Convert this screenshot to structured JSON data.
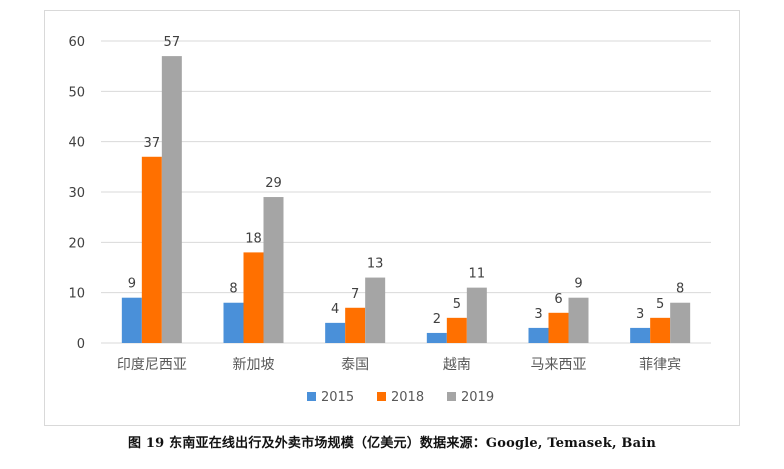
{
  "chart_data": {
    "type": "bar",
    "categories": [
      "印度尼西亚",
      "新加坡",
      "泰国",
      "越南",
      "马来西亚",
      "菲律宾"
    ],
    "series": [
      {
        "name": "2015",
        "color": "#4a90d9",
        "values": [
          9,
          8,
          4,
          2,
          3,
          3
        ]
      },
      {
        "name": "2018",
        "color": "#ff7000",
        "values": [
          37,
          18,
          7,
          5,
          6,
          5
        ]
      },
      {
        "name": "2019",
        "color": "#a5a5a5",
        "values": [
          57,
          29,
          13,
          11,
          9,
          8
        ]
      }
    ],
    "ylim": [
      0,
      60
    ],
    "yticks": [
      0,
      10,
      20,
      30,
      40,
      50,
      60
    ],
    "grid": true,
    "legend_position": "bottom",
    "gridline_color": "#d9d9d9",
    "label_color": "#404040",
    "caption": "图 19 东南亚在线出行及外卖市场规模（亿美元）数据来源：Google, Temasek, Bain"
  }
}
